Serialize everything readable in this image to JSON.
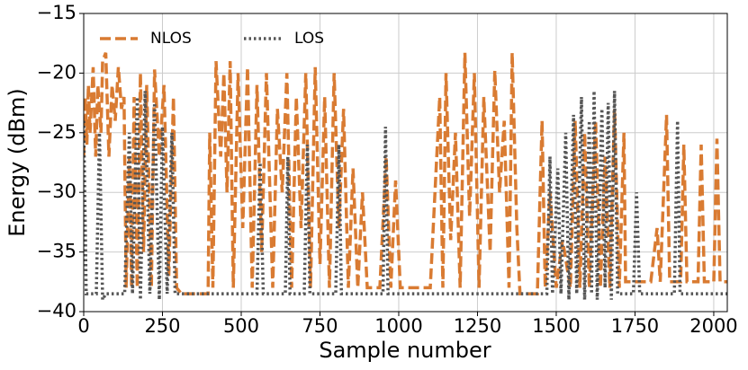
{
  "chart_data": {
    "type": "line",
    "xlabel": "Sample number",
    "ylabel": "Energy (dBm)",
    "xlim": [
      0,
      2043
    ],
    "ylim": [
      -40,
      -15
    ],
    "xticks": [
      0,
      250,
      500,
      750,
      1000,
      1250,
      1500,
      1750,
      2000
    ],
    "yticks": [
      {
        "value": -40,
        "label": "−40"
      },
      {
        "value": -35,
        "label": "−35"
      },
      {
        "value": -30,
        "label": "−30"
      },
      {
        "value": -25,
        "label": "−25"
      },
      {
        "value": -20,
        "label": "−20"
      },
      {
        "value": -15,
        "label": "−15"
      }
    ],
    "grid": true,
    "legend": "upper left",
    "series": [
      {
        "name": "NLOS",
        "color": "#d97b32",
        "style": "dashed",
        "x": [
          0,
          5,
          10,
          15,
          20,
          30,
          38,
          45,
          55,
          60,
          70,
          80,
          90,
          100,
          110,
          120,
          128,
          135,
          145,
          152,
          160,
          170,
          180,
          190,
          200,
          215,
          225,
          240,
          255,
          270,
          285,
          295,
          310,
          350,
          395,
          400,
          410,
          420,
          435,
          445,
          455,
          465,
          475,
          490,
          505,
          520,
          535,
          550,
          565,
          580,
          600,
          615,
          630,
          645,
          660,
          675,
          690,
          705,
          720,
          735,
          750,
          765,
          780,
          795,
          810,
          825,
          840,
          855,
          870,
          885,
          900,
          940,
          960,
          975,
          990,
          1005,
          1100,
          1130,
          1140,
          1150,
          1165,
          1180,
          1195,
          1210,
          1225,
          1240,
          1255,
          1270,
          1290,
          1305,
          1320,
          1335,
          1350,
          1360,
          1375,
          1385,
          1440,
          1455,
          1465,
          1480,
          1500,
          1520,
          1545,
          1560,
          1575,
          1590,
          1605,
          1625,
          1640,
          1655,
          1670,
          1685,
          1700,
          1715,
          1720,
          1800,
          1820,
          1830,
          1850,
          1860,
          1895,
          1905,
          1915,
          1950,
          1960,
          1970,
          2000,
          2010,
          2020,
          2043
        ],
        "values": [
          -27,
          -22,
          -26,
          -21,
          -25,
          -19.5,
          -27,
          -21,
          -25,
          -19,
          -18.3,
          -27,
          -21,
          -24,
          -19.5,
          -23,
          -22,
          -38,
          -27,
          -38,
          -22,
          -38,
          -20,
          -35,
          -21,
          -38,
          -19.7,
          -27,
          -21,
          -37,
          -22,
          -38,
          -38.5,
          -38.5,
          -38.5,
          -25,
          -38,
          -19,
          -27,
          -20,
          -30,
          -19,
          -38,
          -20,
          -33,
          -19.5,
          -38,
          -21,
          -35,
          -20,
          -38,
          -23,
          -30,
          -20,
          -38,
          -22,
          -33,
          -20,
          -38,
          -19.5,
          -36,
          -22,
          -38,
          -20,
          -33,
          -23,
          -38,
          -28,
          -38,
          -30,
          -38,
          -38,
          -27,
          -38,
          -29,
          -38,
          -38,
          -22,
          -38,
          -20,
          -34,
          -25,
          -38,
          -18.3,
          -32,
          -20,
          -38,
          -22,
          -35,
          -19.8,
          -30,
          -24,
          -38,
          -18.3,
          -33,
          -38.5,
          -38.5,
          -24,
          -38,
          -30,
          -38,
          -34,
          -38,
          -24,
          -38,
          -25,
          -38,
          -24,
          -38,
          -27,
          -38,
          -23,
          -38,
          -25,
          -37.5,
          -37.5,
          -33,
          -37.5,
          -23.5,
          -37.5,
          -37.5,
          -26,
          -37.5,
          -37.5,
          -26,
          -37.5,
          -37.5,
          -25.5,
          -37.5,
          -37.5
        ]
      },
      {
        "name": "LOS",
        "color": "#555555",
        "style": "dotted",
        "x": [
          0,
          8,
          40,
          50,
          60,
          70,
          130,
          145,
          155,
          170,
          180,
          195,
          210,
          225,
          240,
          250,
          265,
          280,
          290,
          550,
          560,
          570,
          640,
          648,
          655,
          700,
          710,
          718,
          800,
          810,
          818,
          950,
          958,
          966,
          1470,
          1480,
          1488,
          1505,
          1515,
          1530,
          1540,
          1555,
          1565,
          1580,
          1590,
          1605,
          1612,
          1620,
          1630,
          1645,
          1655,
          1665,
          1675,
          1685,
          1695,
          1745,
          1755,
          1765,
          1875,
          1885,
          1893,
          2043
        ],
        "values": [
          -24,
          -38.5,
          -38.5,
          -25,
          -39,
          -38.5,
          -38.5,
          -25,
          -38.5,
          -22,
          -39,
          -21.5,
          -38.5,
          -22.5,
          -39,
          -24.5,
          -38.5,
          -25,
          -38.5,
          -38.5,
          -27.5,
          -38.5,
          -38.5,
          -27,
          -38.5,
          -38.5,
          -26,
          -38.5,
          -38.5,
          -26,
          -38.5,
          -38.5,
          -24.5,
          -38.5,
          -38.5,
          -27,
          -38.5,
          -28,
          -38.5,
          -25,
          -39,
          -23.5,
          -38.5,
          -22,
          -39,
          -24,
          -38.5,
          -21.5,
          -39,
          -23,
          -38,
          -22.5,
          -39,
          -21.5,
          -38.5,
          -38.5,
          -30,
          -38.5,
          -38.5,
          -24,
          -38.5,
          -38.5
        ]
      }
    ]
  }
}
